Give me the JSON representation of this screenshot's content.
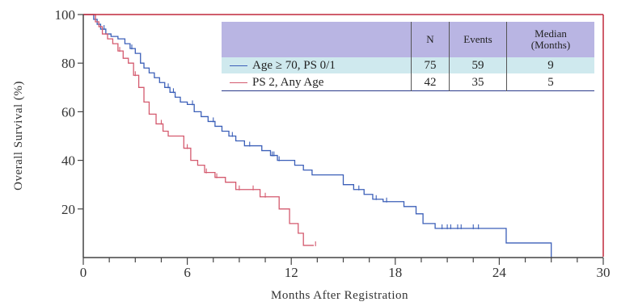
{
  "chart_data": {
    "type": "line",
    "xlabel": "Months After Registration",
    "ylabel": "Overall Survival (%)",
    "xlim": [
      0,
      30
    ],
    "ylim": [
      0,
      100
    ],
    "xticks": [
      0,
      6,
      12,
      18,
      24,
      30
    ],
    "yticks": [
      20,
      40,
      60,
      80,
      100
    ],
    "grid": false,
    "legend_position": "top-right",
    "legend_headers": [
      "",
      "N",
      "Events",
      "Median\n(Months)"
    ],
    "series": [
      {
        "name": "Age ≥ 70, PS 0/1",
        "color": "#3b5fb8",
        "n": "75",
        "events": "59",
        "median": "9",
        "x": [
          0,
          0.5,
          0.6,
          0.8,
          1.0,
          1.3,
          1.6,
          2.0,
          2.4,
          2.7,
          3.0,
          3.3,
          3.5,
          3.8,
          4.1,
          4.4,
          4.7,
          5.0,
          5.3,
          5.6,
          6.0,
          6.4,
          6.8,
          7.2,
          7.6,
          8.0,
          8.4,
          8.8,
          9.3,
          9.8,
          10.3,
          10.8,
          11.2,
          11.7,
          12.2,
          12.7,
          13.2,
          13.8,
          14.4,
          15.0,
          15.6,
          16.2,
          16.7,
          17.3,
          18.5,
          19.2,
          19.6,
          20.3,
          21.3,
          22.2,
          23.2,
          24.4,
          25.0,
          26.0,
          27.0
        ],
        "y": [
          100,
          100,
          98,
          96,
          94,
          92,
          91,
          90,
          88,
          86,
          84,
          80,
          78,
          76,
          74,
          72,
          70,
          68,
          66,
          64,
          63,
          60,
          58,
          56,
          54,
          52,
          50,
          48,
          46,
          46,
          44,
          42,
          40,
          40,
          38,
          36,
          34,
          34,
          34,
          30,
          28,
          26,
          24,
          23,
          21,
          18,
          14,
          12,
          12,
          12,
          12,
          6,
          6,
          6,
          0
        ],
        "censor_x": [
          0.7,
          1.2,
          2.8,
          4.9,
          5.2,
          6.3,
          7.5,
          8.6,
          9.6,
          10.9,
          11.0,
          11.3,
          15.9,
          16.9,
          17.5,
          20.7,
          21.0,
          21.2,
          21.6,
          21.8,
          22.5,
          22.8
        ]
      },
      {
        "name": "PS 2, Any Age",
        "color": "#d45a6e",
        "n": "42",
        "events": "35",
        "median": "5",
        "x": [
          0,
          0.5,
          0.7,
          0.9,
          1.1,
          1.4,
          1.7,
          2.0,
          2.3,
          2.6,
          2.9,
          3.2,
          3.5,
          3.8,
          4.2,
          4.6,
          4.9,
          5.4,
          5.8,
          6.2,
          6.6,
          7.0,
          7.6,
          8.2,
          8.8,
          9.6,
          10.2,
          10.9,
          11.3,
          11.9,
          12.4,
          12.7,
          13.3
        ],
        "y": [
          100,
          100,
          97,
          95,
          92,
          90,
          88,
          85,
          82,
          80,
          75,
          70,
          64,
          59,
          55,
          52,
          50,
          50,
          45,
          40,
          38,
          35,
          33,
          31,
          28,
          28,
          25,
          25,
          20,
          14,
          10,
          5,
          5
        ],
        "censor_x": [
          2.1,
          3.0,
          4.5,
          6.0,
          7.1,
          7.7,
          9.0,
          9.8,
          10.5,
          13.4
        ]
      }
    ]
  }
}
